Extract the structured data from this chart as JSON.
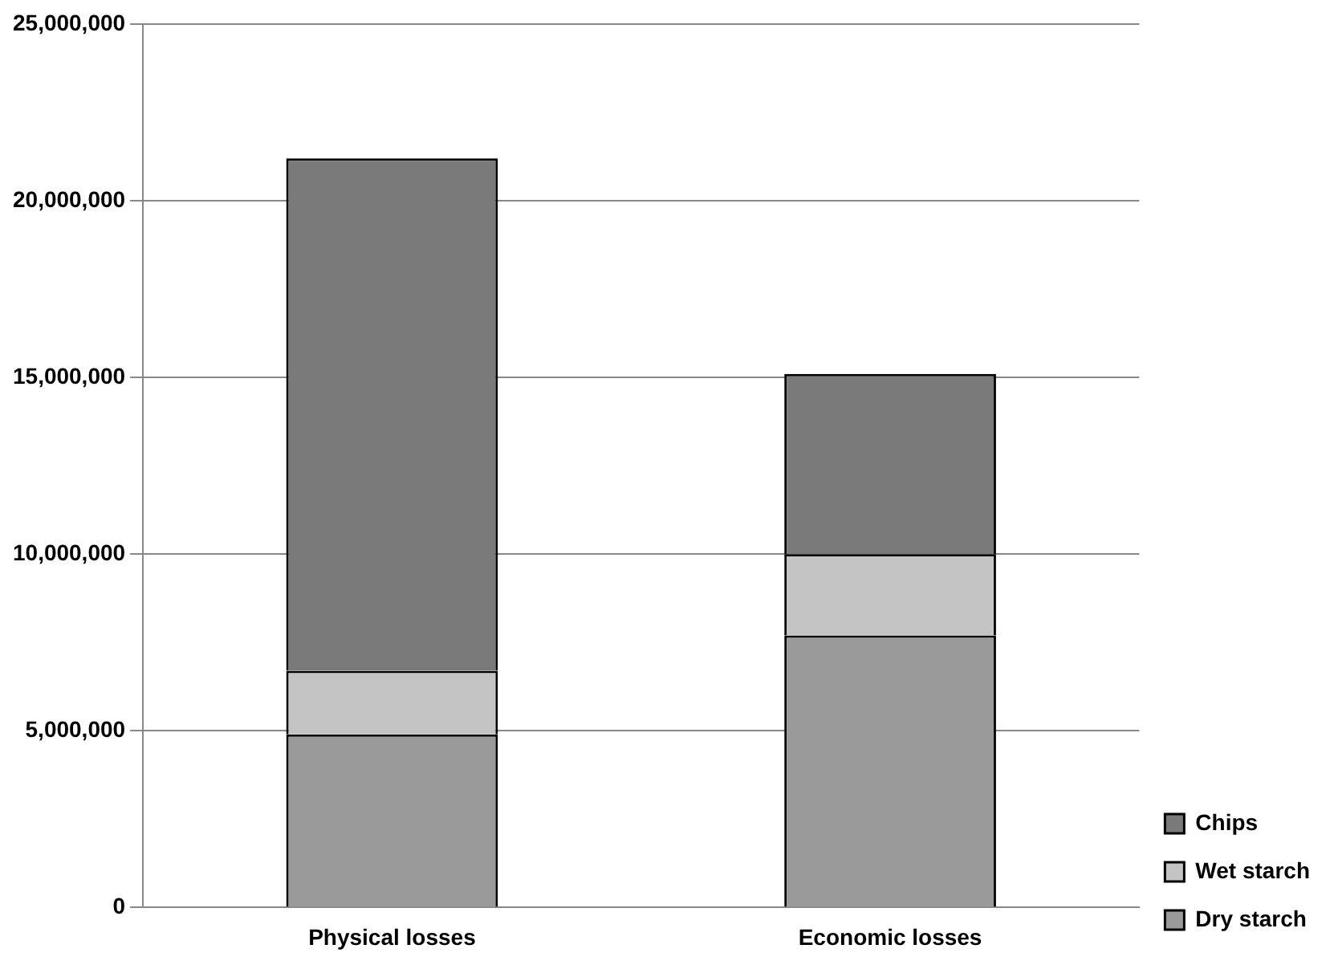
{
  "chart_data": {
    "type": "bar",
    "stacked": true,
    "categories": [
      "Physical losses",
      "Economic losses"
    ],
    "series": [
      {
        "name": "Dry starch",
        "color": "#9a9a9a",
        "values": [
          4900000,
          7700000
        ]
      },
      {
        "name": "Wet starch",
        "color": "#c4c4c4",
        "values": [
          1800000,
          2300000
        ]
      },
      {
        "name": "Chips",
        "color": "#7a7a7a",
        "values": [
          14500000,
          5100000
        ]
      }
    ],
    "ylim": [
      0,
      25000000
    ],
    "yticks": [
      {
        "value": 0,
        "label": "0"
      },
      {
        "value": 5000000,
        "label": "5,000,000"
      },
      {
        "value": 10000000,
        "label": "10,000,000"
      },
      {
        "value": 15000000,
        "label": "15,000,000"
      },
      {
        "value": 20000000,
        "label": "20,000,000"
      },
      {
        "value": 25000000,
        "label": "25,000,000"
      }
    ],
    "grid": "y",
    "legend": "bottom right"
  }
}
